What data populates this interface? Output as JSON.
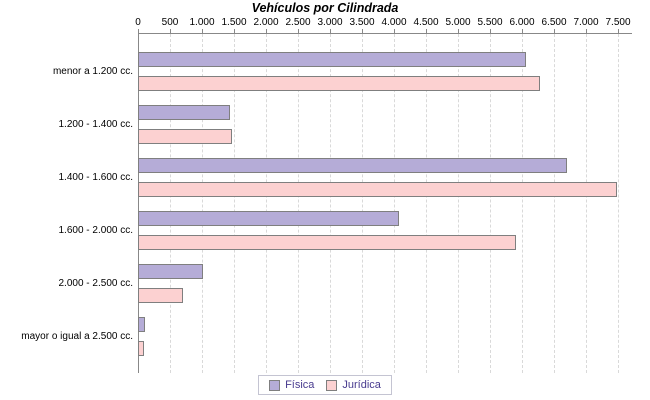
{
  "title": "Vehículos por Cilindrada",
  "chart_data": {
    "type": "bar",
    "orientation": "horizontal",
    "title": "Vehículos por Cilindrada",
    "categories": [
      "menor a 1.200 cc.",
      "1.200 - 1.400 cc.",
      "1.400 - 1.600 cc.",
      "1.600 - 2.000 cc.",
      "2.000 - 2.500 cc.",
      "mayor o igual a 2.500 cc."
    ],
    "series": [
      {
        "name": "Física",
        "color": "#b5acd7",
        "values": [
          6060,
          1440,
          6700,
          4080,
          1015,
          110
        ]
      },
      {
        "name": "Jurídica",
        "color": "#fcd1d1",
        "values": [
          6280,
          1470,
          7480,
          5900,
          700,
          95
        ]
      }
    ],
    "xlim": [
      0,
      7500
    ],
    "tick_step": 500,
    "x_ticks": [
      "0",
      "500",
      "1.000",
      "1.500",
      "2.000",
      "2.500",
      "3.000",
      "3.500",
      "4.000",
      "4.500",
      "5.000",
      "5.500",
      "6.000",
      "6.500",
      "7.000",
      "7.500"
    ],
    "grid": "vertical-dashed",
    "legend_position": "bottom"
  },
  "colors": {
    "bar_border": "#7f7f7f",
    "axis_line": "#888888",
    "gridline": "#d9d9d9",
    "legend_text": "#483b8f",
    "legend_border": "#c4c4d2",
    "text": "#000000",
    "background": "#ffffff"
  }
}
